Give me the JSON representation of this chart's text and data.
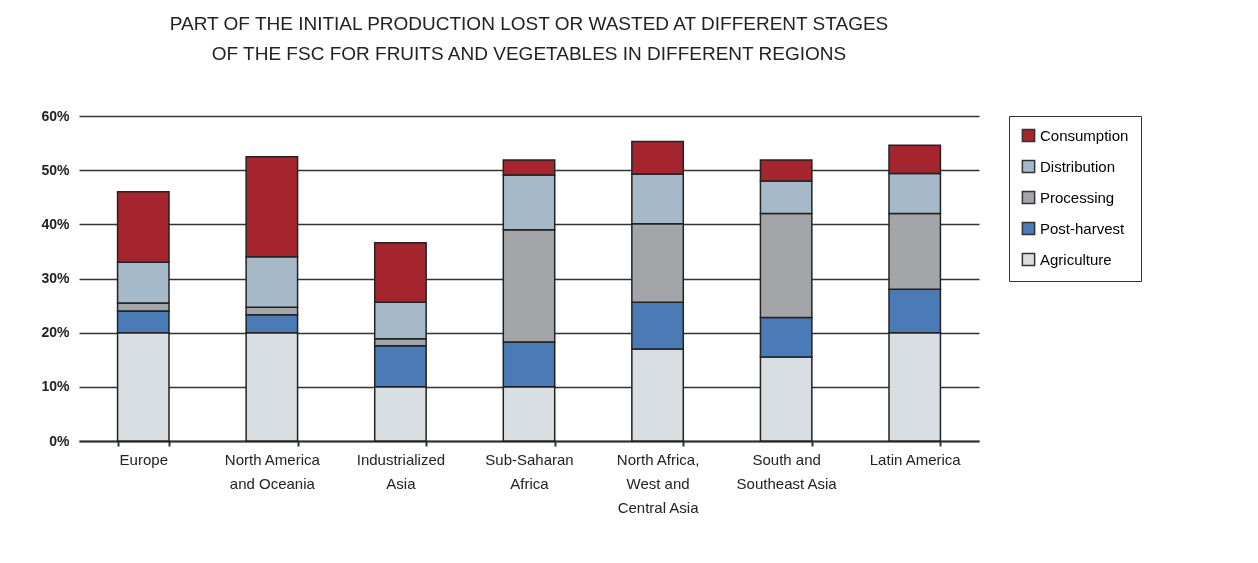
{
  "chart_data": {
    "type": "bar",
    "title": [
      "PART OF THE INITIAL PRODUCTION LOST OR WASTED AT DIFFERENT STAGES",
      "OF THE FSC FOR FRUITS AND VEGETABLES IN DIFFERENT REGIONS"
    ],
    "categories": [
      "Europe",
      "North America and Oceania",
      "Industrialized Asia",
      "Sub-Saharan Africa",
      "North Africa, West and Central Asia",
      "South and Southeast Asia",
      "Latin America"
    ],
    "stacked": true,
    "series": [
      {
        "name": "Agriculture",
        "color": "#d9dee2",
        "values": [
          20,
          20,
          10,
          10,
          17,
          15.5,
          20
        ]
      },
      {
        "name": "Post-harvest",
        "color": "#4a7bb4",
        "values": [
          4,
          3.3,
          7.6,
          8.3,
          8.6,
          7.3,
          8
        ]
      },
      {
        "name": "Processing",
        "color": "#a3a5a8",
        "values": [
          1.5,
          1.4,
          1.3,
          20.7,
          14.5,
          19.2,
          14
        ]
      },
      {
        "name": "Distribution",
        "color": "#a6b9c9",
        "values": [
          7.5,
          9.3,
          6.7,
          10.1,
          9.2,
          6,
          7.4
        ]
      },
      {
        "name": "Consumption",
        "color": "#a4252e",
        "values": [
          13,
          18.5,
          11,
          2.8,
          6,
          3.9,
          5.2
        ]
      }
    ],
    "ylim": [
      0,
      60
    ],
    "yticks": [
      {
        "value": 0,
        "label": "0%"
      },
      {
        "value": 10,
        "label": "10%"
      },
      {
        "value": 20,
        "label": "20%"
      },
      {
        "value": 30,
        "label": "30%"
      },
      {
        "value": 40,
        "label": "40%"
      },
      {
        "value": 50,
        "label": "50%"
      },
      {
        "value": 60,
        "label": "60%"
      }
    ],
    "grid": "y",
    "legend": "right"
  }
}
